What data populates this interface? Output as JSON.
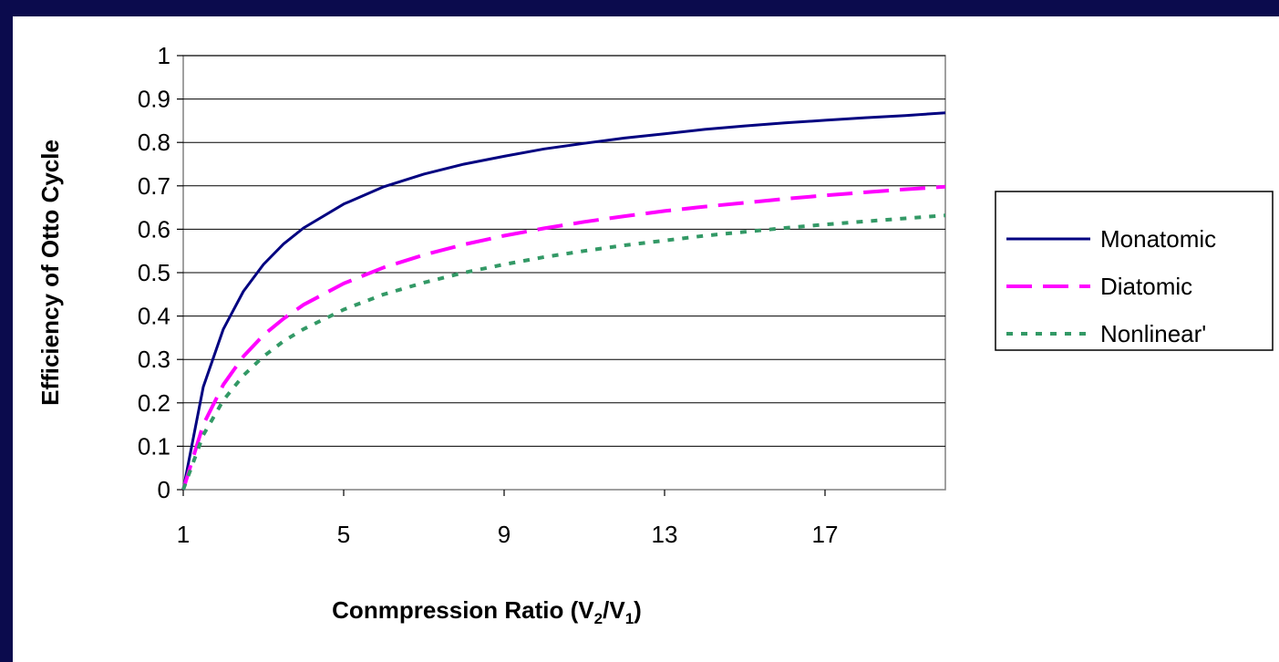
{
  "chart_data": {
    "type": "line",
    "title": "",
    "xlabel": "Conmpression Ratio (V",
    "xlabel_sub1": "2",
    "xlabel_mid": "/V",
    "xlabel_sub2": "1",
    "xlabel_end": ")",
    "ylabel": "Efficiency of Otto Cycle",
    "xlim": [
      1,
      20
    ],
    "ylim": [
      0,
      1
    ],
    "x_ticks": [
      1,
      5,
      9,
      13,
      17
    ],
    "y_ticks": [
      0,
      0.1,
      0.2,
      0.3,
      0.4,
      0.5,
      0.6,
      0.7,
      0.8,
      0.9,
      1
    ],
    "grid": "horizontal",
    "legend_position": "right",
    "x": [
      1,
      1.5,
      2,
      2.5,
      3,
      3.5,
      4,
      5,
      6,
      7,
      8,
      9,
      10,
      11,
      12,
      13,
      14,
      15,
      16,
      17,
      18,
      19,
      20
    ],
    "series": [
      {
        "name": "Monatomic",
        "color": "#000080",
        "dash": "solid",
        "values": [
          0,
          0.237,
          0.37,
          0.457,
          0.519,
          0.566,
          0.603,
          0.658,
          0.698,
          0.727,
          0.75,
          0.768,
          0.785,
          0.798,
          0.81,
          0.82,
          0.83,
          0.838,
          0.845,
          0.851,
          0.857,
          0.862,
          0.868
        ]
      },
      {
        "name": "Diatomic",
        "color": "#ff00ff",
        "dash": "long-dash",
        "values": [
          0,
          0.15,
          0.242,
          0.307,
          0.356,
          0.394,
          0.426,
          0.475,
          0.512,
          0.541,
          0.565,
          0.585,
          0.602,
          0.617,
          0.63,
          0.642,
          0.652,
          0.661,
          0.67,
          0.678,
          0.685,
          0.692,
          0.698
        ]
      },
      {
        "name": "Nonlinear'",
        "color": "#339966",
        "dash": "dotted",
        "values": [
          0,
          0.126,
          0.206,
          0.263,
          0.307,
          0.342,
          0.37,
          0.415,
          0.45,
          0.477,
          0.5,
          0.519,
          0.536,
          0.55,
          0.563,
          0.574,
          0.585,
          0.594,
          0.603,
          0.611,
          0.618,
          0.625,
          0.632
        ]
      }
    ]
  }
}
